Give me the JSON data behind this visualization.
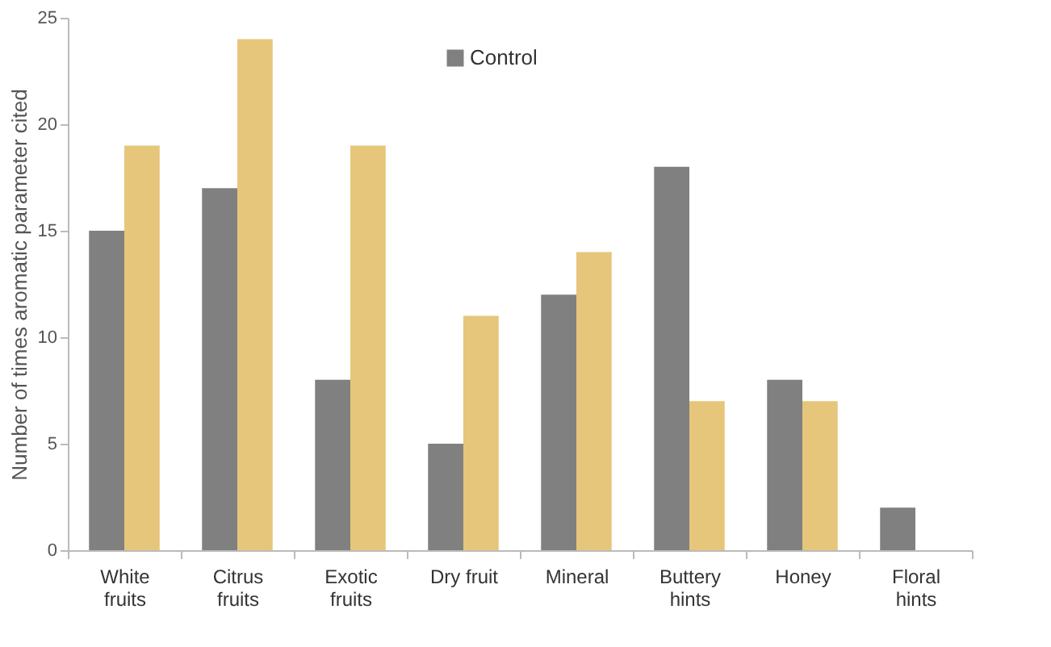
{
  "chart_data": {
    "type": "bar",
    "ylabel": "Number of times aromatic parameter cited",
    "categories": [
      "White\nfruits",
      "Citrus\nfruits",
      "Exotic\nfruits",
      "Dry fruit",
      "Mineral",
      "Buttery\nhints",
      "Honey",
      "Floral\nhints"
    ],
    "series": [
      {
        "name": "Control",
        "color": "#808080",
        "values": [
          15,
          17,
          8,
          5,
          12,
          18,
          8,
          2
        ]
      },
      {
        "color": "#e6c67a",
        "values": [
          19,
          24,
          19,
          11,
          14,
          7,
          7,
          null
        ]
      }
    ],
    "ylim": [
      0,
      25
    ],
    "yticks": [
      0,
      5,
      10,
      15,
      20,
      25
    ],
    "grid": false,
    "legend": "top"
  }
}
